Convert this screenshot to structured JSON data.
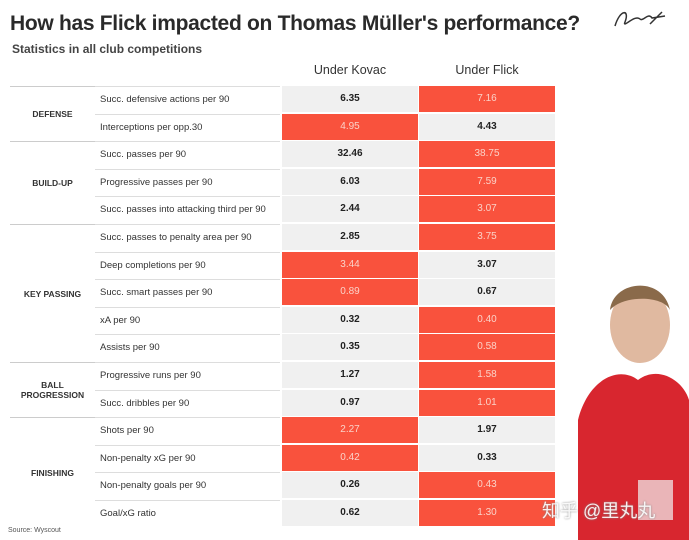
{
  "title": "How has Flick impacted on Thomas Müller's performance?",
  "subtitle": "Statistics in all club competitions",
  "source": "Source: Wyscout",
  "watermark": "知乎 @里丸丸",
  "colors": {
    "highlight": "#f9523d",
    "neutral": "#f0f0f0",
    "highlight_text": "#fbd2c8",
    "text": "#222222"
  },
  "chart_data": {
    "type": "table",
    "columns": [
      "Under Kovac",
      "Under Flick"
    ],
    "groups": [
      {
        "name": "DEFENSE",
        "rows": [
          {
            "metric": "Succ. defensive actions per 90",
            "kovac": "6.35",
            "flick": "7.16",
            "better": "flick"
          },
          {
            "metric": "Interceptions per opp.30",
            "kovac": "4.95",
            "flick": "4.43",
            "better": "kovac"
          }
        ]
      },
      {
        "name": "BUILD-UP",
        "rows": [
          {
            "metric": "Succ. passes per 90",
            "kovac": "32.46",
            "flick": "38.75",
            "better": "flick"
          },
          {
            "metric": "Progressive passes per 90",
            "kovac": "6.03",
            "flick": "7.59",
            "better": "flick"
          },
          {
            "metric": "Succ. passes into attacking third per 90",
            "kovac": "2.44",
            "flick": "3.07",
            "better": "flick"
          }
        ]
      },
      {
        "name": "KEY PASSING",
        "rows": [
          {
            "metric": "Succ. passes to penalty area per 90",
            "kovac": "2.85",
            "flick": "3.75",
            "better": "flick"
          },
          {
            "metric": "Deep completions per 90",
            "kovac": "3.44",
            "flick": "3.07",
            "better": "kovac"
          },
          {
            "metric": "Succ. smart passes per 90",
            "kovac": "0.89",
            "flick": "0.67",
            "better": "kovac"
          },
          {
            "metric": "xA per 90",
            "kovac": "0.32",
            "flick": "0.40",
            "better": "flick"
          },
          {
            "metric": "Assists per 90",
            "kovac": "0.35",
            "flick": "0.58",
            "better": "flick"
          }
        ]
      },
      {
        "name": "BALL PROGRESSION",
        "rows": [
          {
            "metric": "Progressive runs per 90",
            "kovac": "1.27",
            "flick": "1.58",
            "better": "flick"
          },
          {
            "metric": "Succ. dribbles per 90",
            "kovac": "0.97",
            "flick": "1.01",
            "better": "flick"
          }
        ]
      },
      {
        "name": "FINISHING",
        "rows": [
          {
            "metric": "Shots per 90",
            "kovac": "2.27",
            "flick": "1.97",
            "better": "kovac"
          },
          {
            "metric": "Non-penalty xG per 90",
            "kovac": "0.42",
            "flick": "0.33",
            "better": "kovac"
          },
          {
            "metric": "Non-penalty goals per 90",
            "kovac": "0.26",
            "flick": "0.43",
            "better": "flick"
          },
          {
            "metric": "Goal/xG ratio",
            "kovac": "0.62",
            "flick": "1.30",
            "better": "flick"
          }
        ]
      }
    ]
  }
}
